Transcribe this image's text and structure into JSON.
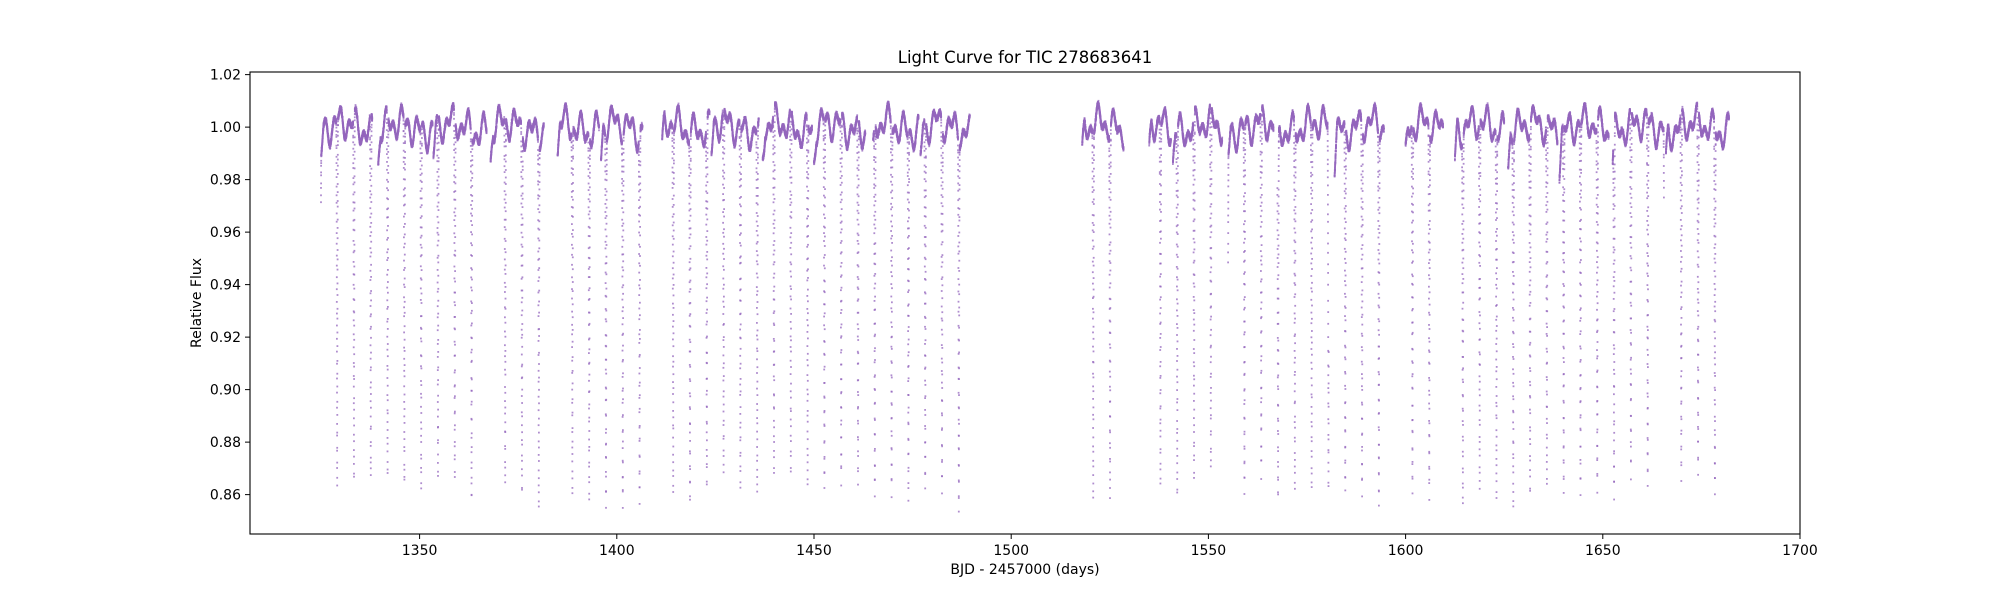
{
  "chart_data": {
    "type": "scatter",
    "title": "Light Curve for TIC 278683641",
    "xlabel": "BJD - 2457000 (days)",
    "ylabel": "Relative Flux",
    "xlim": [
      1307,
      1700
    ],
    "ylim": [
      0.845,
      1.021
    ],
    "xticks": [
      1350,
      1400,
      1450,
      1500,
      1550,
      1600,
      1650,
      1700
    ],
    "yticks": [
      0.86,
      0.88,
      0.9,
      0.92,
      0.94,
      0.96,
      0.98,
      1.0,
      1.02
    ],
    "xtick_labels": [
      "1350",
      "1400",
      "1450",
      "1500",
      "1550",
      "1600",
      "1650",
      "1700"
    ],
    "ytick_labels": [
      "0.86",
      "0.88",
      "0.90",
      "0.92",
      "0.94",
      "0.96",
      "0.98",
      "1.00",
      "1.02"
    ],
    "grid": false,
    "legend": false,
    "series": [
      {
        "color": "#9467bd",
        "baseline_flux": 1.0,
        "eclipse_min_flux": 0.86,
        "eclipse_period_days": 4.26,
        "eclipse_first_epoch": 1329.1,
        "observing_segments": [
          [
            1325.0,
            1338.0
          ],
          [
            1339.5,
            1353.3
          ],
          [
            1353.5,
            1367.0
          ],
          [
            1368.0,
            1381.5
          ],
          [
            1385.0,
            1395.5
          ],
          [
            1396.0,
            1406.5
          ],
          [
            1411.5,
            1423.5
          ],
          [
            1424.0,
            1436.0
          ],
          [
            1437.0,
            1449.5
          ],
          [
            1450.0,
            1463.0
          ],
          [
            1465.0,
            1476.5
          ],
          [
            1477.0,
            1489.5
          ],
          [
            1518.0,
            1528.5
          ],
          [
            1535.0,
            1540.5
          ],
          [
            1541.0,
            1553.5
          ],
          [
            1555.0,
            1566.5
          ],
          [
            1567.5,
            1580.5
          ],
          [
            1582.0,
            1594.5
          ],
          [
            1600.0,
            1609.5
          ],
          [
            1612.5,
            1625.0
          ],
          [
            1626.0,
            1638.5
          ],
          [
            1639.0,
            1651.5
          ],
          [
            1652.5,
            1665.5
          ],
          [
            1666.0,
            1682.0
          ]
        ]
      }
    ]
  }
}
